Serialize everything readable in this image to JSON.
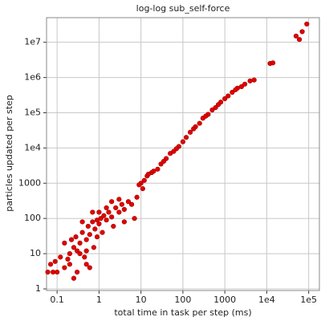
{
  "chart_data": {
    "type": "scatter",
    "title": "log-log sub_self-force",
    "xlabel": "total time in task per step (ms)",
    "ylabel": "particles updated per step",
    "xscale": "log",
    "yscale": "log",
    "grid": true,
    "color": "#e00000",
    "xlim": [
      0.056,
      180000
    ],
    "ylim": [
      0.9,
      50000000
    ],
    "xticks": [
      0.1,
      1,
      10,
      100,
      1000,
      {
        "value": 10000,
        "label": "1e4"
      },
      {
        "value": 100000,
        "label": "1e5"
      }
    ],
    "yticks": [
      1,
      10,
      100,
      1000,
      {
        "value": 10000,
        "label": "1e4"
      },
      {
        "value": 100000,
        "label": "1e5"
      },
      {
        "value": 1000000,
        "label": "1e6"
      },
      {
        "value": 10000000,
        "label": "1e7"
      }
    ],
    "x": [
      0.06,
      0.07,
      0.08,
      0.09,
      0.1,
      0.12,
      0.15,
      0.18,
      0.2,
      0.22,
      0.25,
      0.28,
      0.3,
      0.35,
      0.4,
      0.45,
      0.5,
      0.55,
      0.6,
      0.7,
      0.75,
      0.8,
      0.9,
      1.0,
      1.1,
      1.2,
      1.3,
      1.5,
      1.7,
      2,
      2.2,
      2.5,
      3,
      3.5,
      4,
      5,
      6,
      7,
      8,
      0.25,
      0.3,
      0.5,
      0.6,
      0.15,
      0.4,
      0.9,
      2,
      3,
      1.5,
      0.7,
      0.5,
      0.2,
      0.35,
      1,
      4,
      12,
      14,
      18,
      20,
      25,
      30,
      40,
      50,
      60,
      80,
      100,
      120,
      150,
      200,
      250,
      300,
      400,
      500,
      600,
      800,
      1000,
      1200,
      1500,
      2000,
      2500,
      3000,
      4000,
      5000,
      12000,
      14000,
      50000,
      60000,
      70000,
      90000,
      10,
      15,
      35,
      70,
      180,
      350,
      700,
      1800,
      11,
      9
    ],
    "values": [
      3,
      5,
      3,
      6,
      3,
      8,
      4,
      7,
      10,
      25,
      15,
      30,
      12,
      20,
      40,
      8,
      25,
      60,
      35,
      80,
      15,
      50,
      90,
      70,
      100,
      40,
      120,
      90,
      150,
      110,
      60,
      200,
      150,
      250,
      180,
      300,
      250,
      100,
      400,
      2,
      3,
      5,
      4,
      20,
      80,
      30,
      300,
      350,
      200,
      150,
      12,
      5,
      10,
      150,
      80,
      1200,
      1600,
      2000,
      2200,
      2500,
      3500,
      5000,
      7000,
      8000,
      11000,
      15000,
      20000,
      28000,
      40000,
      50000,
      70000,
      90000,
      120000,
      140000,
      200000,
      250000,
      300000,
      380000,
      500000,
      550000,
      650000,
      800000,
      850000,
      2500000,
      2600000,
      15000000,
      12000000,
      20000000,
      33000000,
      1000,
      1800,
      4200,
      9500,
      35000,
      80000,
      170000,
      450000,
      700,
      900
    ]
  }
}
